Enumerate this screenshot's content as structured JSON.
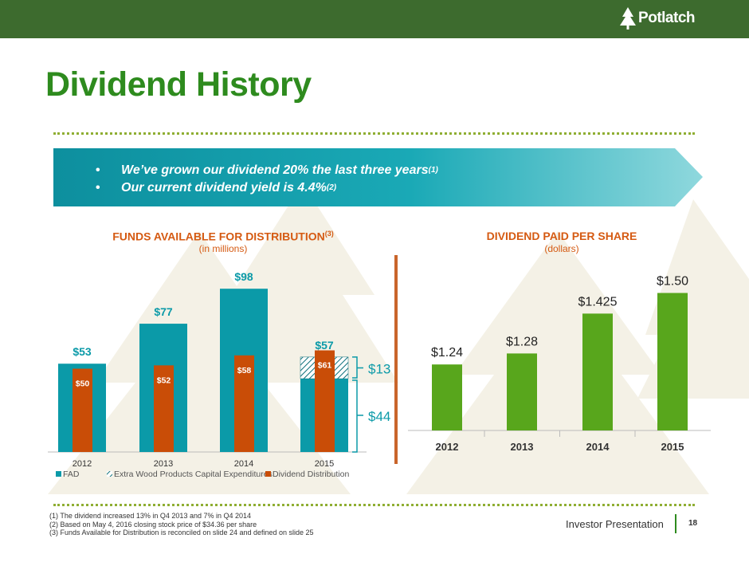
{
  "brand": {
    "name": "Potlatch",
    "green": "#3d6b2e",
    "title_green": "#2e8b1e",
    "orange": "#d55a12"
  },
  "title": "Dividend History",
  "bullets": [
    {
      "text": "We’ve grown our dividend 20% the last three years",
      "sup": "(1)"
    },
    {
      "text": "Our current dividend yield is 4.4%",
      "sup": "(2)"
    }
  ],
  "fad_title": "FUNDS AVAILABLE FOR DISTRIBUTION",
  "fad_title_sup": "(3)",
  "fad_subtitle": "(in millions)",
  "dps_title": "DIVIDEND PAID PER SHARE",
  "dps_subtitle": "(dollars)",
  "footnotes": [
    "(1)  The dividend increased 13% in Q4 2013 and 7% in Q4 2014",
    "(2)  Based on May 4, 2016 closing stock price of $34.36 per share",
    "(3)  Funds Available for Distribution is reconciled on slide 24 and defined on slide 25"
  ],
  "footer_label": "Investor Presentation",
  "page_number": "18",
  "chart_data": [
    {
      "type": "bar",
      "title": "FUNDS AVAILABLE FOR DISTRIBUTION(3)",
      "subtitle": "(in millions)",
      "categories": [
        "2012",
        "2013",
        "2014",
        "2015"
      ],
      "series": [
        {
          "name": "FAD",
          "values": [
            53,
            77,
            98,
            44
          ],
          "labels": [
            "$53",
            "$77",
            "$98",
            ""
          ],
          "color": "#0b9aa8"
        },
        {
          "name": "Extra Wood Products Capital Expenditures",
          "values": [
            0,
            0,
            0,
            13
          ],
          "labels": [
            "",
            "",
            "",
            ""
          ],
          "color": "#0b9aa8",
          "pattern": "hatch"
        },
        {
          "name": "Dividend Distribution",
          "values": [
            50,
            52,
            58,
            61
          ],
          "labels": [
            "$50",
            "$52",
            "$58",
            "$61"
          ],
          "color": "#c94d07"
        }
      ],
      "stack_total_label": "$57",
      "brackets": [
        "$13",
        "$44"
      ],
      "legend": "bottom",
      "ylim": [
        0,
        110
      ]
    },
    {
      "type": "bar",
      "title": "DIVIDEND PAID PER SHARE",
      "subtitle": "(dollars)",
      "categories": [
        "2012",
        "2013",
        "2014",
        "2015"
      ],
      "values": [
        1.24,
        1.28,
        1.425,
        1.5
      ],
      "labels": [
        "$1.24",
        "$1.28",
        "$1.425",
        "$1.50"
      ],
      "color": "#58a61c",
      "ylim": [
        1.0,
        1.55
      ]
    }
  ]
}
